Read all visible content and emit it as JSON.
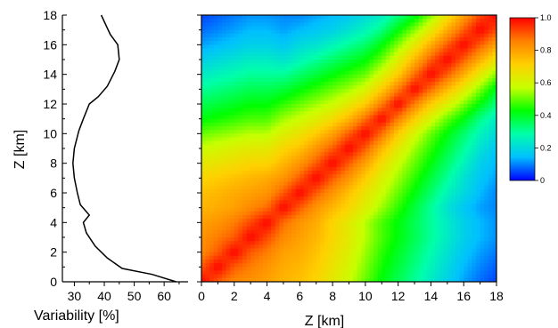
{
  "chart_data": [
    {
      "type": "line",
      "xlabel": "Variability [%]",
      "ylabel": "Z [km]",
      "xlim": [
        26,
        68
      ],
      "ylim": [
        0,
        18
      ],
      "x_ticks": [
        30,
        40,
        50,
        60
      ],
      "y_ticks": [
        0,
        2,
        4,
        6,
        8,
        10,
        12,
        14,
        16,
        18
      ],
      "series": [
        {
          "points": [
            {
              "x": 64,
              "y": 0.0
            },
            {
              "x": 56,
              "y": 0.5
            },
            {
              "x": 46,
              "y": 0.9
            },
            {
              "x": 41,
              "y": 1.6
            },
            {
              "x": 37,
              "y": 2.4
            },
            {
              "x": 34,
              "y": 3.3
            },
            {
              "x": 33,
              "y": 4.0
            },
            {
              "x": 35,
              "y": 4.5
            },
            {
              "x": 32,
              "y": 5.2
            },
            {
              "x": 31,
              "y": 6.0
            },
            {
              "x": 30,
              "y": 7.0
            },
            {
              "x": 29.5,
              "y": 8.0
            },
            {
              "x": 30,
              "y": 9.0
            },
            {
              "x": 31.5,
              "y": 10.2
            },
            {
              "x": 33,
              "y": 11.0
            },
            {
              "x": 35,
              "y": 12.0
            },
            {
              "x": 38,
              "y": 12.5
            },
            {
              "x": 41,
              "y": 13.2
            },
            {
              "x": 43.5,
              "y": 14.2
            },
            {
              "x": 45,
              "y": 15.0
            },
            {
              "x": 44.5,
              "y": 16.0
            },
            {
              "x": 42,
              "y": 16.7
            },
            {
              "x": 39,
              "y": 18.0
            }
          ]
        }
      ]
    },
    {
      "type": "heatmap",
      "xlabel": "Z [km]",
      "xlim": [
        0,
        18
      ],
      "ylim": [
        0,
        18
      ],
      "x_ticks": [
        0,
        2,
        4,
        6,
        8,
        10,
        12,
        14,
        16,
        18
      ],
      "y_ticks": [
        0,
        2,
        4,
        6,
        8,
        10,
        12,
        14,
        16,
        18
      ],
      "colorbar": {
        "range": [
          0,
          1
        ],
        "ticks": [
          0,
          0.2,
          0.4,
          0.6,
          0.8,
          1.0
        ],
        "tick_labels": [
          "0",
          "0.2",
          "0.4",
          "0.6",
          "0.8",
          "1.0"
        ],
        "colormap": [
          "#0000ff",
          "#00bfff",
          "#00ffaa",
          "#00ff00",
          "#c8ff00",
          "#ffd000",
          "#ff8000",
          "#ff0000"
        ]
      },
      "grid_z_km": [
        0,
        1,
        2,
        3,
        4,
        5,
        6,
        7,
        8,
        9,
        10,
        11,
        12,
        13,
        14,
        15,
        16,
        17,
        18
      ],
      "correlation_matrix": [
        [
          1.0,
          0.9,
          0.84,
          0.82,
          0.8,
          0.76,
          0.74,
          0.7,
          0.64,
          0.58,
          0.5,
          0.42,
          0.36,
          0.3,
          0.24,
          0.18,
          0.12,
          0.08,
          0.05
        ],
        [
          0.9,
          1.0,
          0.9,
          0.86,
          0.82,
          0.78,
          0.76,
          0.72,
          0.66,
          0.6,
          0.52,
          0.44,
          0.38,
          0.32,
          0.26,
          0.2,
          0.14,
          0.1,
          0.07
        ],
        [
          0.84,
          0.9,
          1.0,
          0.9,
          0.86,
          0.8,
          0.78,
          0.74,
          0.68,
          0.62,
          0.54,
          0.46,
          0.4,
          0.34,
          0.28,
          0.22,
          0.16,
          0.12,
          0.09
        ],
        [
          0.82,
          0.86,
          0.9,
          1.0,
          0.92,
          0.84,
          0.8,
          0.76,
          0.7,
          0.64,
          0.56,
          0.48,
          0.42,
          0.36,
          0.3,
          0.24,
          0.18,
          0.14,
          0.11
        ],
        [
          0.8,
          0.82,
          0.86,
          0.92,
          1.0,
          0.88,
          0.82,
          0.78,
          0.7,
          0.64,
          0.56,
          0.48,
          0.42,
          0.36,
          0.3,
          0.24,
          0.18,
          0.14,
          0.11
        ],
        [
          0.76,
          0.78,
          0.8,
          0.84,
          0.88,
          1.0,
          0.9,
          0.82,
          0.76,
          0.7,
          0.62,
          0.54,
          0.46,
          0.38,
          0.3,
          0.22,
          0.16,
          0.12,
          0.1
        ],
        [
          0.74,
          0.76,
          0.78,
          0.8,
          0.82,
          0.9,
          1.0,
          0.9,
          0.82,
          0.74,
          0.66,
          0.58,
          0.5,
          0.42,
          0.34,
          0.26,
          0.2,
          0.14,
          0.1
        ],
        [
          0.7,
          0.72,
          0.74,
          0.76,
          0.78,
          0.82,
          0.9,
          1.0,
          0.9,
          0.82,
          0.72,
          0.62,
          0.54,
          0.46,
          0.38,
          0.3,
          0.22,
          0.16,
          0.12
        ],
        [
          0.64,
          0.66,
          0.68,
          0.7,
          0.7,
          0.76,
          0.82,
          0.9,
          1.0,
          0.9,
          0.8,
          0.68,
          0.58,
          0.5,
          0.42,
          0.34,
          0.26,
          0.18,
          0.14
        ],
        [
          0.58,
          0.6,
          0.62,
          0.64,
          0.64,
          0.7,
          0.74,
          0.82,
          0.9,
          1.0,
          0.9,
          0.76,
          0.64,
          0.54,
          0.46,
          0.38,
          0.3,
          0.22,
          0.16
        ],
        [
          0.5,
          0.52,
          0.54,
          0.56,
          0.56,
          0.62,
          0.66,
          0.72,
          0.8,
          0.9,
          1.0,
          0.88,
          0.72,
          0.6,
          0.5,
          0.42,
          0.34,
          0.26,
          0.2
        ],
        [
          0.42,
          0.44,
          0.46,
          0.48,
          0.48,
          0.54,
          0.58,
          0.62,
          0.68,
          0.76,
          0.88,
          1.0,
          0.86,
          0.72,
          0.6,
          0.5,
          0.42,
          0.32,
          0.24
        ],
        [
          0.36,
          0.38,
          0.4,
          0.42,
          0.42,
          0.46,
          0.5,
          0.54,
          0.58,
          0.64,
          0.72,
          0.86,
          1.0,
          0.86,
          0.72,
          0.62,
          0.52,
          0.42,
          0.32
        ],
        [
          0.3,
          0.32,
          0.34,
          0.36,
          0.36,
          0.38,
          0.42,
          0.46,
          0.5,
          0.54,
          0.6,
          0.72,
          0.86,
          1.0,
          0.88,
          0.76,
          0.64,
          0.52,
          0.4
        ],
        [
          0.24,
          0.26,
          0.28,
          0.3,
          0.3,
          0.3,
          0.34,
          0.38,
          0.42,
          0.46,
          0.5,
          0.6,
          0.72,
          0.88,
          1.0,
          0.9,
          0.78,
          0.64,
          0.52
        ],
        [
          0.18,
          0.2,
          0.22,
          0.24,
          0.24,
          0.22,
          0.26,
          0.3,
          0.34,
          0.38,
          0.42,
          0.5,
          0.62,
          0.76,
          0.9,
          1.0,
          0.9,
          0.78,
          0.66
        ],
        [
          0.12,
          0.14,
          0.16,
          0.18,
          0.18,
          0.16,
          0.2,
          0.22,
          0.26,
          0.3,
          0.34,
          0.42,
          0.52,
          0.64,
          0.78,
          0.9,
          1.0,
          0.9,
          0.8
        ],
        [
          0.08,
          0.1,
          0.12,
          0.14,
          0.14,
          0.12,
          0.14,
          0.16,
          0.18,
          0.22,
          0.26,
          0.32,
          0.42,
          0.52,
          0.64,
          0.78,
          0.9,
          1.0,
          0.92
        ],
        [
          0.05,
          0.07,
          0.09,
          0.11,
          0.11,
          0.1,
          0.1,
          0.12,
          0.14,
          0.16,
          0.2,
          0.24,
          0.32,
          0.4,
          0.52,
          0.66,
          0.8,
          0.92,
          1.0
        ]
      ]
    }
  ]
}
